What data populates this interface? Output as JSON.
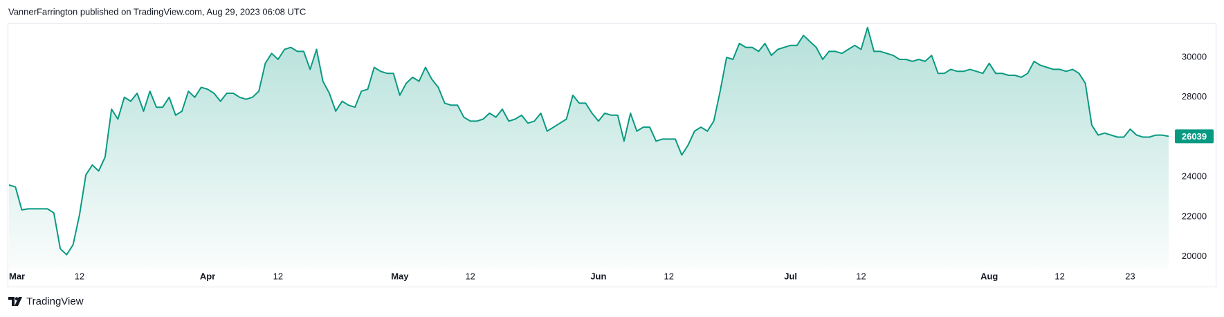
{
  "header": {
    "text": "VannerFarrington published on TradingView.com, Aug 29, 2023 06:08 UTC"
  },
  "footer": {
    "brand": "TradingView"
  },
  "chart_data": {
    "type": "area",
    "x": [
      0,
      1,
      2,
      3,
      4,
      5,
      6,
      7,
      8,
      9,
      10,
      11,
      12,
      13,
      14,
      15,
      16,
      17,
      18,
      19,
      20,
      21,
      22,
      23,
      24,
      25,
      26,
      27,
      28,
      29,
      30,
      31,
      32,
      33,
      34,
      35,
      36,
      37,
      38,
      39,
      40,
      41,
      42,
      43,
      44,
      45,
      46,
      47,
      48,
      49,
      50,
      51,
      52,
      53,
      54,
      55,
      56,
      57,
      58,
      59,
      60,
      61,
      62,
      63,
      64,
      65,
      66,
      67,
      68,
      69,
      70,
      71,
      72,
      73,
      74,
      75,
      76,
      77,
      78,
      79,
      80,
      81,
      82,
      83,
      84,
      85,
      86,
      87,
      88,
      89,
      90,
      91,
      92,
      93,
      94,
      95,
      96,
      97,
      98,
      99,
      100,
      101,
      102,
      103,
      104,
      105,
      106,
      107,
      108,
      109,
      110,
      111,
      112,
      113,
      114,
      115,
      116,
      117,
      118,
      119,
      120,
      121,
      122,
      123,
      124,
      125,
      126,
      127,
      128,
      129,
      130,
      131,
      132,
      133,
      134,
      135,
      136,
      137,
      138,
      139,
      140,
      141,
      142,
      143,
      144,
      145,
      146,
      147,
      148,
      149,
      150,
      151,
      152,
      153,
      154,
      155,
      156,
      157,
      158,
      159,
      160,
      161,
      162,
      163,
      164,
      165,
      166,
      167,
      168,
      169,
      170,
      171,
      172,
      173,
      174,
      175,
      176,
      177,
      178,
      179,
      180,
      181
    ],
    "series": [
      {
        "color": "#089981",
        "values": [
          23600,
          23500,
          22350,
          22400,
          22400,
          22400,
          22400,
          22200,
          20400,
          20100,
          20600,
          22100,
          24100,
          24600,
          24300,
          25000,
          27400,
          26900,
          28000,
          27800,
          28200,
          27300,
          28300,
          27500,
          27500,
          28000,
          27100,
          27300,
          28300,
          28000,
          28500,
          28400,
          28200,
          27800,
          28200,
          28200,
          28000,
          27900,
          28000,
          28300,
          29700,
          30200,
          29900,
          30400,
          30500,
          30300,
          30300,
          29400,
          30400,
          28800,
          28200,
          27300,
          27800,
          27600,
          27500,
          28300,
          28400,
          29500,
          29300,
          29200,
          29200,
          28100,
          28700,
          29000,
          28800,
          29500,
          28900,
          28500,
          27700,
          27600,
          27600,
          27000,
          26800,
          26800,
          26900,
          27200,
          27000,
          27400,
          26800,
          26900,
          27100,
          26700,
          26800,
          27200,
          26300,
          26500,
          26700,
          26900,
          28100,
          27700,
          27700,
          27200,
          26800,
          27200,
          27100,
          27100,
          25800,
          27200,
          26300,
          26500,
          26500,
          25800,
          25900,
          25900,
          25900,
          25100,
          25600,
          26300,
          26500,
          26300,
          26800,
          28300,
          30000,
          29900,
          30700,
          30500,
          30500,
          30300,
          30700,
          30100,
          30400,
          30500,
          30600,
          30600,
          31100,
          30800,
          30500,
          29900,
          30300,
          30300,
          30200,
          30400,
          30600,
          30400,
          31500,
          30300,
          30300,
          30200,
          30100,
          29900,
          29900,
          29800,
          29900,
          29800,
          30100,
          29200,
          29200,
          29400,
          29300,
          29300,
          29400,
          29300,
          29200,
          29700,
          29200,
          29200,
          29100,
          29100,
          29000,
          29200,
          29800,
          29600,
          29500,
          29400,
          29400,
          29300,
          29400,
          29200,
          28700,
          26600,
          26100,
          26200,
          26100,
          26000,
          26000,
          26400,
          26100,
          26000,
          26000,
          26100,
          26100,
          26039
        ]
      }
    ],
    "xlim": [
      0,
      181
    ],
    "xticks": [
      {
        "value": 0,
        "label": "Mar"
      },
      {
        "value": 11,
        "label": "12"
      },
      {
        "value": 31,
        "label": "Apr"
      },
      {
        "value": 42,
        "label": "12"
      },
      {
        "value": 61,
        "label": "May"
      },
      {
        "value": 72,
        "label": "12"
      },
      {
        "value": 92,
        "label": "Jun"
      },
      {
        "value": 103,
        "label": "12"
      },
      {
        "value": 122,
        "label": "Jul"
      },
      {
        "value": 133,
        "label": "12"
      },
      {
        "value": 153,
        "label": "Aug"
      },
      {
        "value": 164,
        "label": "12"
      },
      {
        "value": 175,
        "label": "23"
      }
    ],
    "ylim": [
      19400,
      31700
    ],
    "yticks": [
      20000,
      22000,
      24000,
      26000,
      28000,
      30000
    ],
    "grid": false
  }
}
